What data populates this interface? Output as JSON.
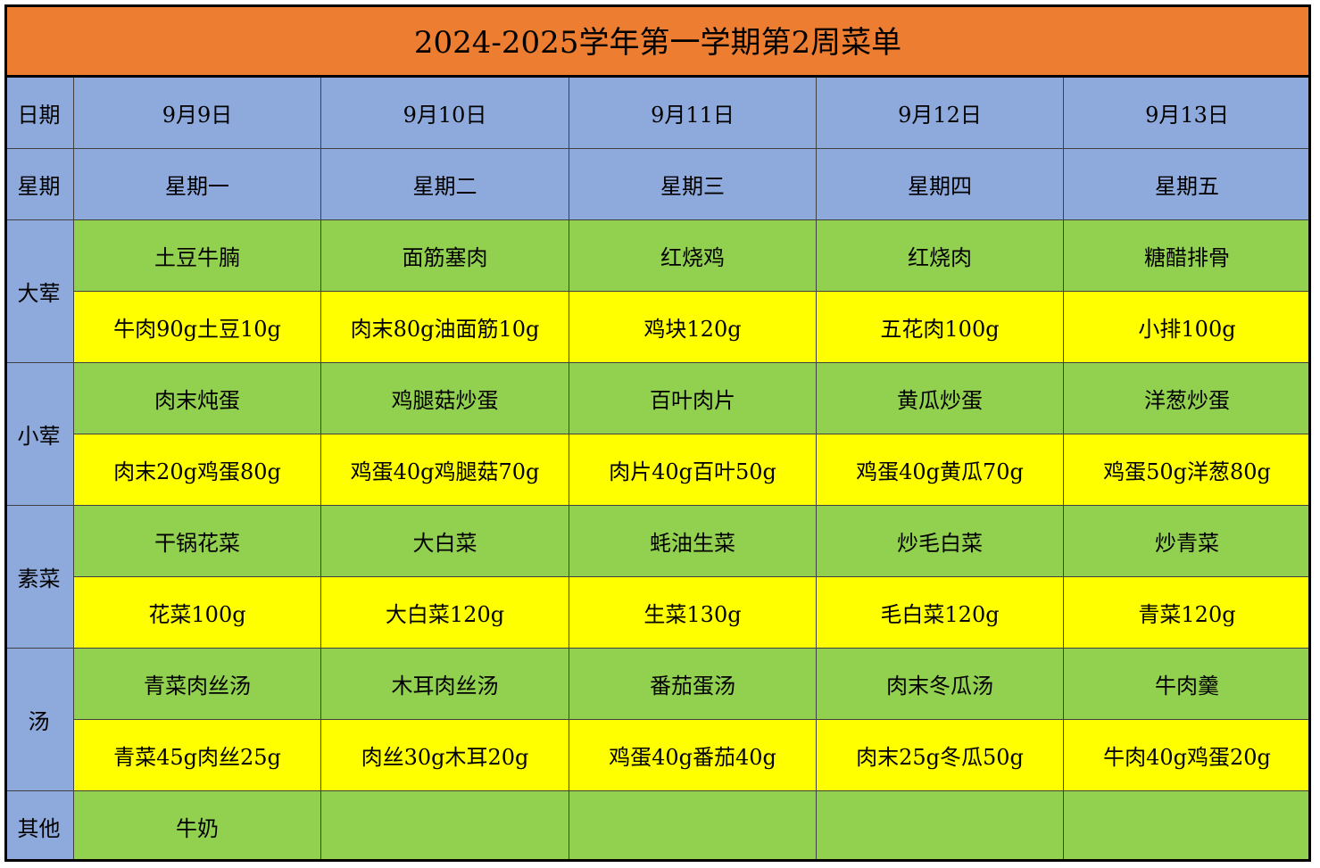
{
  "title": "2024-2025学年第一学期第2周菜单",
  "header": {
    "date_label": "日期",
    "dates": [
      "9月9日",
      "9月10日",
      "9月11日",
      "9月12日",
      "9月13日"
    ],
    "weekday_label": "星期",
    "weekdays": [
      "星期一",
      "星期二",
      "星期三",
      "星期四",
      "星期五"
    ]
  },
  "sections": [
    {
      "label": "大荤",
      "dishes": [
        "土豆牛腩",
        "面筋塞肉",
        "红烧鸡",
        "红烧肉",
        "糖醋排骨"
      ],
      "ingredients": [
        "牛肉90g土豆10g",
        "肉末80g油面筋10g",
        "鸡块120g",
        "五花肉100g",
        "小排100g"
      ]
    },
    {
      "label": "小荤",
      "dishes": [
        "肉末炖蛋",
        "鸡腿菇炒蛋",
        "百叶肉片",
        "黄瓜炒蛋",
        "洋葱炒蛋"
      ],
      "ingredients": [
        "肉末20g鸡蛋80g",
        "鸡蛋40g鸡腿菇70g",
        "肉片40g百叶50g",
        "鸡蛋40g黄瓜70g",
        "鸡蛋50g洋葱80g"
      ]
    },
    {
      "label": "素菜",
      "dishes": [
        "干锅花菜",
        "大白菜",
        "蚝油生菜",
        "炒毛白菜",
        "炒青菜"
      ],
      "ingredients": [
        "花菜100g",
        "大白菜120g",
        "生菜130g",
        "毛白菜120g",
        "青菜120g"
      ]
    },
    {
      "label": "汤",
      "dishes": [
        "青菜肉丝汤",
        "木耳肉丝汤",
        "番茄蛋汤",
        "肉末冬瓜汤",
        "牛肉羹"
      ],
      "ingredients": [
        "青菜45g肉丝25g",
        "肉丝30g木耳20g",
        "鸡蛋40g番茄40g",
        "肉末25g冬瓜50g",
        "牛肉40g鸡蛋20g"
      ]
    },
    {
      "label": "其他",
      "dishes": [
        "牛奶"
      ]
    }
  ]
}
